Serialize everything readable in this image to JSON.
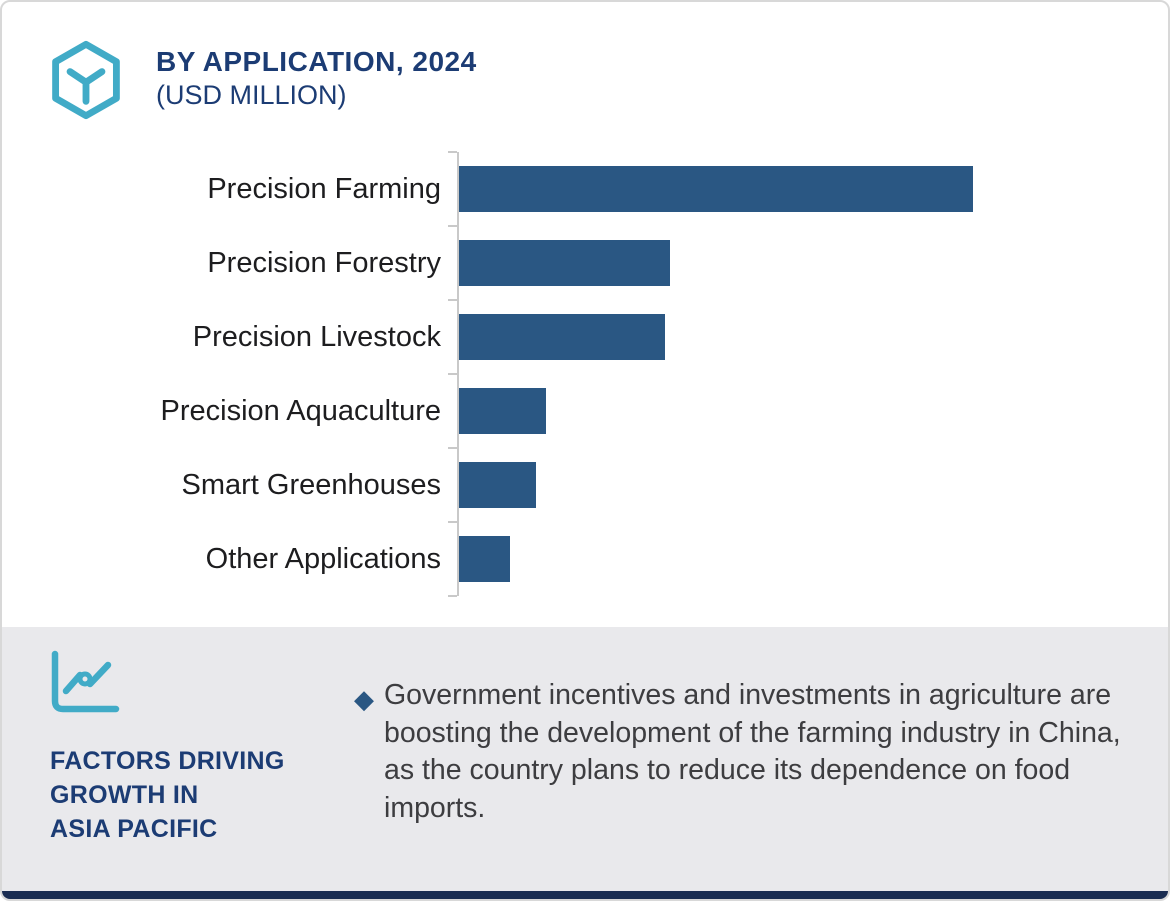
{
  "header": {
    "title": "BY APPLICATION, 2024",
    "subtitle": "(USD MILLION)"
  },
  "chart_data": {
    "type": "bar",
    "orientation": "horizontal",
    "title": "BY APPLICATION, 2024 (USD MILLION)",
    "categories": [
      "Precision Farming",
      "Precision Forestry",
      "Precision Livestock",
      "Precision Aquaculture",
      "Smart Greenhouses",
      "Other Applications"
    ],
    "values": [
      100,
      41,
      40,
      17,
      15,
      10
    ],
    "values_estimated": true,
    "value_labels_shown": false,
    "xlabel": "",
    "ylabel": "",
    "xlim": [
      0,
      105
    ],
    "grid": false,
    "legend": "none",
    "bar_color": "#2a5783",
    "axis_color": "#c9c9c9"
  },
  "footer": {
    "heading_lines": [
      "FACTORS DRIVING",
      "GROWTH IN",
      "ASIA PACIFIC"
    ],
    "bullet_marker": "◆",
    "bullet_text": "Government incentives and investments in agriculture are boosting the development of the farming industry in China, as the country plans to reduce its dependence on food imports."
  },
  "colors": {
    "bar": "#2a5783",
    "navy_text": "#1c3c74",
    "teal": "#41abc7",
    "panel_bg": "#e9e9ec",
    "bottom_strip": "#1a2d52",
    "body_text": "#3d3d40",
    "axis": "#c9c9c9"
  }
}
